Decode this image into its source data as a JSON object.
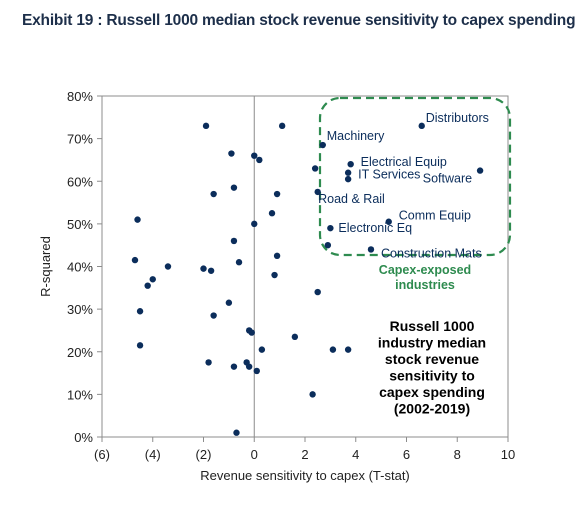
{
  "chart_data": {
    "type": "scatter",
    "title": "Exhibit 19 : Russell 1000 median stock revenue sensitivity to capex spending",
    "xlabel": "Revenue sensitivity to capex (T-stat)",
    "ylabel": "R-squared",
    "xlim": [
      -6,
      10
    ],
    "ylim": [
      0,
      80
    ],
    "x_ticks": [
      -6,
      -4,
      -2,
      0,
      2,
      4,
      6,
      8,
      10
    ],
    "x_tick_labels": [
      "(6)",
      "(4)",
      "(2)",
      "0",
      "2",
      "4",
      "6",
      "8",
      "10"
    ],
    "y_ticks": [
      0,
      10,
      20,
      30,
      40,
      50,
      60,
      70,
      80
    ],
    "y_tick_labels": [
      "0%",
      "10%",
      "20%",
      "30%",
      "40%",
      "50%",
      "60%",
      "70%",
      "80%"
    ],
    "grid": false,
    "reference_line_x": 0,
    "marker_color": "#0b2d5b",
    "points": [
      {
        "x": 6.6,
        "y": 73,
        "label": "Distributors"
      },
      {
        "x": 2.7,
        "y": 68.5,
        "label": "Machinery"
      },
      {
        "x": 3.8,
        "y": 64,
        "label": "Electrical Equip"
      },
      {
        "x": 3.7,
        "y": 62,
        "label": "IT Services"
      },
      {
        "x": 8.9,
        "y": 62.5,
        "label": "Software"
      },
      {
        "x": 3.7,
        "y": 60.5,
        "label": "Road & Rail"
      },
      {
        "x": 5.3,
        "y": 50.5,
        "label": "Comm Equip"
      },
      {
        "x": 3.0,
        "y": 49,
        "label": "Electronic Eq"
      },
      {
        "x": 4.6,
        "y": 44,
        "label": "Construction Mats"
      },
      {
        "x": -1.9,
        "y": 73
      },
      {
        "x": 1.1,
        "y": 73
      },
      {
        "x": -0.9,
        "y": 66.5
      },
      {
        "x": 0.0,
        "y": 66
      },
      {
        "x": 0.2,
        "y": 65
      },
      {
        "x": 2.4,
        "y": 63
      },
      {
        "x": 2.5,
        "y": 57.5
      },
      {
        "x": 2.9,
        "y": 45
      },
      {
        "x": -1.6,
        "y": 57
      },
      {
        "x": -0.8,
        "y": 58.5
      },
      {
        "x": 0.9,
        "y": 57
      },
      {
        "x": 0.7,
        "y": 52.5
      },
      {
        "x": -4.6,
        "y": 51
      },
      {
        "x": 0.0,
        "y": 50
      },
      {
        "x": -0.8,
        "y": 46
      },
      {
        "x": -4.7,
        "y": 41.5
      },
      {
        "x": 0.9,
        "y": 42.5
      },
      {
        "x": -0.6,
        "y": 41
      },
      {
        "x": -3.4,
        "y": 40
      },
      {
        "x": -2.0,
        "y": 39.5
      },
      {
        "x": -1.7,
        "y": 39
      },
      {
        "x": 0.8,
        "y": 38
      },
      {
        "x": -4.0,
        "y": 37
      },
      {
        "x": -4.2,
        "y": 35.5
      },
      {
        "x": 2.5,
        "y": 34
      },
      {
        "x": -1.0,
        "y": 31.5
      },
      {
        "x": -4.5,
        "y": 29.5
      },
      {
        "x": -1.6,
        "y": 28.5
      },
      {
        "x": -0.2,
        "y": 25
      },
      {
        "x": -0.1,
        "y": 24.5
      },
      {
        "x": 1.6,
        "y": 23.5
      },
      {
        "x": -4.5,
        "y": 21.5
      },
      {
        "x": 0.3,
        "y": 20.5
      },
      {
        "x": 3.1,
        "y": 20.5
      },
      {
        "x": 3.7,
        "y": 20.5
      },
      {
        "x": -1.8,
        "y": 17.5
      },
      {
        "x": -0.3,
        "y": 17.5
      },
      {
        "x": -0.2,
        "y": 16.5
      },
      {
        "x": -0.8,
        "y": 16.5
      },
      {
        "x": 0.1,
        "y": 15.5
      },
      {
        "x": 2.3,
        "y": 10
      },
      {
        "x": -0.7,
        "y": 1
      }
    ],
    "annotations": {
      "box_text": [
        "Russell 1000",
        "industry median",
        "stock revenue",
        "sensitivity to",
        "capex spending",
        "(2002-2019)"
      ],
      "group_label": [
        "Capex-exposed",
        "industries"
      ],
      "group_color": "#2e8b4f"
    }
  }
}
